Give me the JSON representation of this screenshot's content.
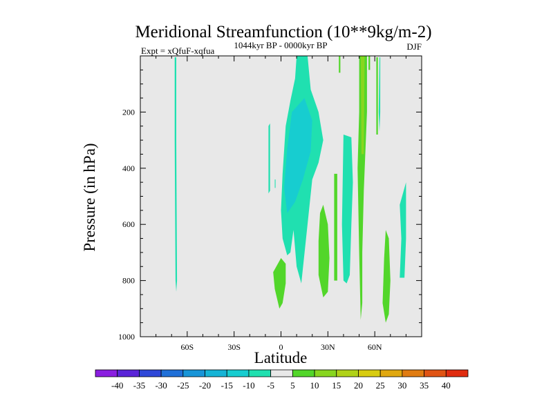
{
  "chart_data": {
    "type": "heatmap",
    "title": "Meridional Streamfunction (10**9kg/m-2)",
    "left_label": "Expt = xQfuF-xqfua",
    "center_label": "1044kyr BP - 0000kyr BP",
    "right_label": "DJF",
    "xlabel": "Latitude",
    "ylabel": "Pressure (in hPa)",
    "xlim": [
      -90,
      90
    ],
    "ylim": [
      1000,
      0
    ],
    "x_ticks": [
      {
        "value": -60,
        "label": "60S"
      },
      {
        "value": -30,
        "label": "30S"
      },
      {
        "value": 0,
        "label": "0"
      },
      {
        "value": 30,
        "label": "30N"
      },
      {
        "value": 60,
        "label": "60N"
      }
    ],
    "y_ticks": [
      {
        "value": 200,
        "label": "200"
      },
      {
        "value": 400,
        "label": "400"
      },
      {
        "value": 600,
        "label": "600"
      },
      {
        "value": 800,
        "label": "800"
      },
      {
        "value": 1000,
        "label": "1000"
      }
    ],
    "background_color": "#e8e8e8",
    "colorbar": {
      "labels": [
        "-40",
        "-35",
        "-30",
        "-25",
        "-20",
        "-15",
        "-10",
        "-5",
        "5",
        "10",
        "15",
        "20",
        "25",
        "30",
        "35",
        "40"
      ],
      "colors": [
        "#8a1ee0",
        "#5a24d8",
        "#2f48d8",
        "#2070d8",
        "#1895d8",
        "#16b4d6",
        "#17cdd0",
        "#20e0b0",
        "#e8e8e8",
        "#52d62a",
        "#88d620",
        "#b0d218",
        "#d8cc10",
        "#e0a810",
        "#e07c12",
        "#e05414",
        "#e02c10"
      ]
    },
    "regions": [
      {
        "name": "sh-cyan-strip",
        "level": -5,
        "points": [
          [
            -68,
            5
          ],
          [
            -67,
            5
          ],
          [
            -67,
            300
          ],
          [
            -66.5,
            800
          ],
          [
            -67,
            840
          ],
          [
            -67.5,
            800
          ],
          [
            -68,
            300
          ]
        ]
      },
      {
        "name": "eq-cyan-main",
        "level": -5,
        "points": [
          [
            10,
            0
          ],
          [
            17,
            0
          ],
          [
            19,
            120
          ],
          [
            24,
            200
          ],
          [
            27,
            300
          ],
          [
            24,
            380
          ],
          [
            20,
            440
          ],
          [
            17,
            600
          ],
          [
            13,
            810
          ],
          [
            10,
            750
          ],
          [
            8,
            620
          ],
          [
            6,
            700
          ],
          [
            4,
            710
          ],
          [
            1,
            650
          ],
          [
            0,
            550
          ],
          [
            1,
            420
          ],
          [
            3,
            250
          ],
          [
            6,
            160
          ],
          [
            9,
            80
          ]
        ]
      },
      {
        "name": "eq-cyan-core",
        "level": -10,
        "points": [
          [
            7,
            200
          ],
          [
            15,
            150
          ],
          [
            20,
            230
          ],
          [
            19,
            340
          ],
          [
            14,
            440
          ],
          [
            9,
            520
          ],
          [
            4,
            560
          ],
          [
            2,
            470
          ],
          [
            4,
            330
          ]
        ]
      },
      {
        "name": "cyan-patch-west",
        "level": -5,
        "points": [
          [
            -8,
            250
          ],
          [
            -7,
            240
          ],
          [
            -7,
            480
          ],
          [
            -8,
            490
          ]
        ]
      },
      {
        "name": "cyan-dot-west",
        "level": -5,
        "points": [
          [
            -4,
            440
          ],
          [
            -3.5,
            440
          ],
          [
            -3.5,
            470
          ],
          [
            -4,
            470
          ]
        ]
      },
      {
        "name": "cyan-band-mid",
        "level": -5,
        "points": [
          [
            40,
            280
          ],
          [
            45,
            290
          ],
          [
            46,
            450
          ],
          [
            45,
            600
          ],
          [
            44,
            780
          ],
          [
            42,
            810
          ],
          [
            40,
            800
          ],
          [
            39,
            600
          ]
        ]
      },
      {
        "name": "cyan-strip-ne",
        "level": -5,
        "points": [
          [
            63,
            5
          ],
          [
            63.5,
            5
          ],
          [
            63.5,
            200
          ],
          [
            63,
            270
          ],
          [
            62.5,
            200
          ]
        ]
      },
      {
        "name": "cyan-band-nh",
        "level": -5,
        "points": [
          [
            76,
            530
          ],
          [
            80,
            450
          ],
          [
            80,
            650
          ],
          [
            79,
            790
          ],
          [
            76,
            790
          ],
          [
            77,
            650
          ]
        ]
      },
      {
        "name": "green-blob-a",
        "level": 5,
        "points": [
          [
            -5,
            770
          ],
          [
            0,
            720
          ],
          [
            3,
            740
          ],
          [
            3,
            810
          ],
          [
            1,
            880
          ],
          [
            -1,
            900
          ],
          [
            -4,
            830
          ]
        ]
      },
      {
        "name": "green-blob-b",
        "level": 5,
        "points": [
          [
            25,
            560
          ],
          [
            27,
            530
          ],
          [
            30,
            600
          ],
          [
            31,
            720
          ],
          [
            30,
            840
          ],
          [
            27,
            860
          ],
          [
            24,
            780
          ],
          [
            24,
            660
          ]
        ]
      },
      {
        "name": "green-blob-c",
        "level": 5,
        "points": [
          [
            34,
            420
          ],
          [
            36,
            420
          ],
          [
            36,
            800
          ],
          [
            34,
            800
          ]
        ]
      },
      {
        "name": "green-tall-nh",
        "level": 5,
        "points": [
          [
            50,
            0
          ],
          [
            55,
            0
          ],
          [
            55,
            200
          ],
          [
            53,
            480
          ],
          [
            52,
            700
          ],
          [
            52,
            880
          ],
          [
            51,
            940
          ],
          [
            50,
            700
          ],
          [
            49,
            400
          ],
          [
            50,
            200
          ]
        ]
      },
      {
        "name": "green-core-nh",
        "level": 10,
        "points": [
          [
            51,
            0
          ],
          [
            53.5,
            0
          ],
          [
            53,
            350
          ],
          [
            51.5,
            350
          ]
        ]
      },
      {
        "name": "green-strip-nh",
        "level": 5,
        "points": [
          [
            37,
            0
          ],
          [
            38,
            0
          ],
          [
            38,
            60
          ],
          [
            37,
            60
          ]
        ]
      },
      {
        "name": "green-thin-a",
        "level": 5,
        "points": [
          [
            56,
            0
          ],
          [
            57,
            0
          ],
          [
            57,
            50
          ],
          [
            56,
            50
          ]
        ]
      },
      {
        "name": "green-thin-b",
        "level": 5,
        "points": [
          [
            61,
            5
          ],
          [
            62,
            5
          ],
          [
            62,
            280
          ],
          [
            61,
            280
          ]
        ]
      },
      {
        "name": "green-band-far",
        "level": 5,
        "points": [
          [
            67,
            620
          ],
          [
            69,
            650
          ],
          [
            70,
            800
          ],
          [
            69,
            920
          ],
          [
            67,
            950
          ],
          [
            65,
            880
          ],
          [
            66,
            720
          ]
        ]
      }
    ]
  }
}
